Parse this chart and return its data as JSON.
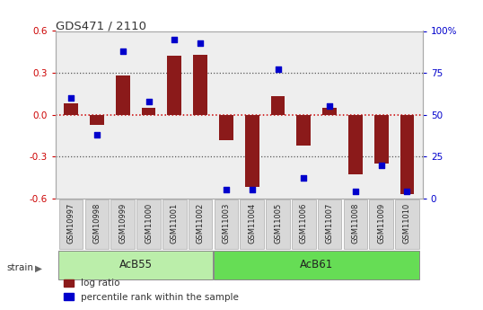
{
  "title": "GDS471 / 2110",
  "samples": [
    "GSM10997",
    "GSM10998",
    "GSM10999",
    "GSM11000",
    "GSM11001",
    "GSM11002",
    "GSM11003",
    "GSM11004",
    "GSM11005",
    "GSM11006",
    "GSM11007",
    "GSM11008",
    "GSM11009",
    "GSM11010"
  ],
  "log_ratio": [
    0.08,
    -0.07,
    0.28,
    0.05,
    0.42,
    0.43,
    -0.18,
    -0.52,
    0.13,
    -0.22,
    0.05,
    -0.43,
    -0.35,
    -0.57
  ],
  "percentile": [
    60,
    38,
    88,
    58,
    95,
    93,
    5,
    5,
    77,
    12,
    55,
    4,
    20,
    4
  ],
  "strain_labels": [
    "AcB55",
    "AcB61"
  ],
  "strain_ranges": [
    [
      0,
      5
    ],
    [
      6,
      13
    ]
  ],
  "strain_colors": [
    "#bbeeaa",
    "#66dd55"
  ],
  "bar_color": "#8b1a1a",
  "dot_color": "#0000cc",
  "ylim": [
    -0.6,
    0.6
  ],
  "y2lim": [
    0,
    100
  ],
  "yticks": [
    -0.6,
    -0.3,
    0.0,
    0.3,
    0.6
  ],
  "y2ticks": [
    0,
    25,
    50,
    75,
    100
  ],
  "y2ticklabels": [
    "0",
    "25",
    "50",
    "75",
    "100%"
  ],
  "hline_color": "#cc0000",
  "dotted_color": "#555555",
  "bg_color": "#ffffff",
  "plot_bg": "#eeeeee"
}
